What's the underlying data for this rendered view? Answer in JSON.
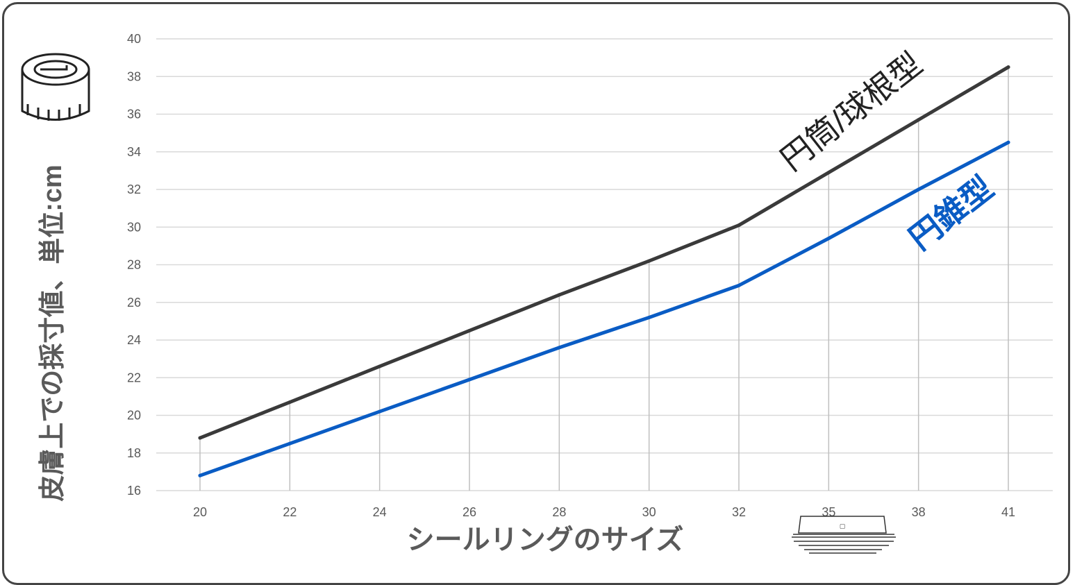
{
  "chart_data": {
    "type": "line",
    "xlabel": "シールリングのサイズ",
    "ylabel": "皮膚上での採寸値、単位:cm",
    "categories": [
      "20",
      "22",
      "24",
      "26",
      "28",
      "30",
      "32",
      "35",
      "38",
      "41"
    ],
    "ylim": [
      16,
      40
    ],
    "yticks": [
      16,
      18,
      20,
      22,
      24,
      26,
      28,
      30,
      32,
      34,
      36,
      38,
      40
    ],
    "grid": true,
    "series": [
      {
        "name": "円筒/球根型",
        "color": "#3a3a3a",
        "values": [
          18.8,
          20.7,
          22.6,
          24.5,
          26.4,
          28.2,
          30.1,
          32.9,
          35.7,
          38.5
        ]
      },
      {
        "name": "円錐型",
        "color": "#0a5cc4",
        "values": [
          16.8,
          18.5,
          20.2,
          21.9,
          23.6,
          25.2,
          26.9,
          29.4,
          32.0,
          34.5
        ]
      }
    ]
  },
  "icons": {
    "measuring_tape": "measuring-tape-icon",
    "seal_ring": "seal-ring-icon"
  }
}
